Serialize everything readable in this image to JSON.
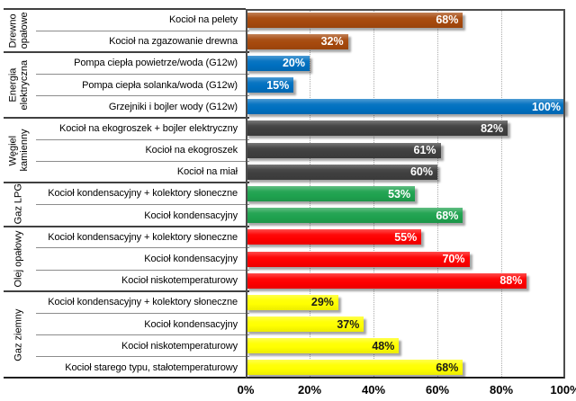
{
  "chart_data": {
    "type": "bar",
    "orientation": "horizontal",
    "value_unit": "%",
    "xlim": [
      0,
      100
    ],
    "grid": "dotted-vertical",
    "x_tick_labels": [
      "0%",
      "20%",
      "40%",
      "60%",
      "80%",
      "100%"
    ],
    "groups": [
      {
        "name": "Drewno opałowe",
        "color": "#A6490D",
        "value_text_color": "#FFFFFF",
        "items": [
          {
            "label": "Kocioł na pelety",
            "value": 68,
            "value_label": "68%"
          },
          {
            "label": "Kocioł na zgazowanie drewna",
            "value": 32,
            "value_label": "32%"
          }
        ]
      },
      {
        "name": "Energia elektryczna",
        "color": "#0070C0",
        "value_text_color": "#FFFFFF",
        "items": [
          {
            "label": "Pompa ciepła powietrze/woda (G12w)",
            "value": 20,
            "value_label": "20%"
          },
          {
            "label": "Pompa ciepła solanka/woda (G12w)",
            "value": 15,
            "value_label": "15%"
          },
          {
            "label": "Grzejniki i bojler wody (G12w)",
            "value": 100,
            "value_label": "100%"
          }
        ]
      },
      {
        "name": "Węgiel kamienny",
        "color": "#3F3F3F",
        "value_text_color": "#FFFFFF",
        "items": [
          {
            "label": "Kocioł na ekogroszek + bojler elektryczny",
            "value": 82,
            "value_label": "82%"
          },
          {
            "label": "Kocioł na ekogroszek",
            "value": 61,
            "value_label": "61%"
          },
          {
            "label": "Kocioł na miał",
            "value": 60,
            "value_label": "60%"
          }
        ]
      },
      {
        "name": "Gaz LPG",
        "color": "#1FA24F",
        "value_text_color": "#FFFFFF",
        "items": [
          {
            "label": "Kocioł kondensacyjny + kolektory słoneczne",
            "value": 53,
            "value_label": "53%"
          },
          {
            "label": "Kocioł kondensacyjny",
            "value": 68,
            "value_label": "68%"
          }
        ]
      },
      {
        "name": "Olej opałowy",
        "color": "#FE0000",
        "value_text_color": "#FFFFFF",
        "items": [
          {
            "label": "Kocioł kondensacyjny + kolektory słoneczne",
            "value": 55,
            "value_label": "55%"
          },
          {
            "label": "Kocioł kondensacyjny",
            "value": 70,
            "value_label": "70%"
          },
          {
            "label": "Kocioł niskotemperaturowy",
            "value": 88,
            "value_label": "88%"
          }
        ]
      },
      {
        "name": "Gaz ziemny",
        "color": "#FFFF00",
        "value_text_color": "#1A1A1A",
        "items": [
          {
            "label": "Kocioł kondensacyjny + kolektory słoneczne",
            "value": 29,
            "value_label": "29%"
          },
          {
            "label": "Kocioł kondensacyjny",
            "value": 37,
            "value_label": "37%"
          },
          {
            "label": "Kocioł niskotemperaturowy",
            "value": 48,
            "value_label": "48%"
          },
          {
            "label": "Kocioł starego typu, stałotemperaturowy",
            "value": 68,
            "value_label": "68%"
          }
        ]
      }
    ],
    "style": {
      "plot_border_color": "#4D4D4D",
      "axis_bottom_color": "#1F1F1F",
      "gridline_color": "#ABABAB",
      "group_separator_color": "#404040",
      "item_separator_color": "#8C8C8C"
    }
  }
}
